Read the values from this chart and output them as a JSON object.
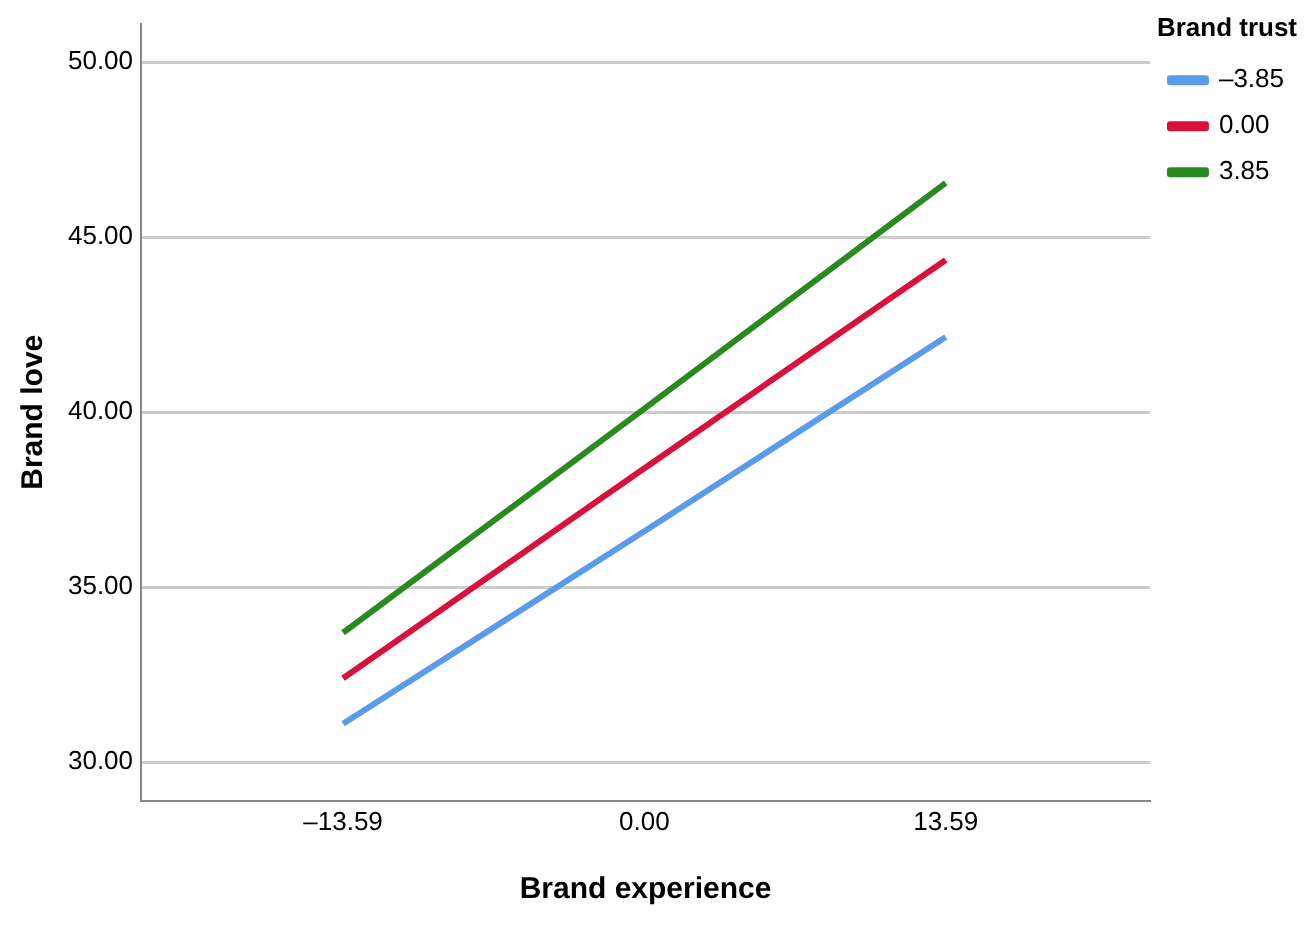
{
  "chart_data": {
    "type": "line",
    "xlabel": "Brand experience",
    "ylabel": "Brand love",
    "legend_title": "Brand trust",
    "x": [
      -13.59,
      0,
      13.59
    ],
    "series": [
      {
        "name": "–3.85",
        "color": "#5b9bec",
        "values": [
          31.1,
          36.6,
          42.15
        ]
      },
      {
        "name": "0.00",
        "color": "#d9103c",
        "values": [
          32.4,
          38.4,
          44.35
        ]
      },
      {
        "name": "3.85",
        "color": "#2a8a22",
        "values": [
          33.7,
          40.1,
          46.55
        ]
      }
    ],
    "xlim": [
      -22.7,
      22.8
    ],
    "xticks": [
      {
        "value": -13.59,
        "label": "–13.59"
      },
      {
        "value": 0,
        "label": "0.00"
      },
      {
        "value": 13.59,
        "label": "13.59"
      }
    ],
    "ylim": [
      28.9,
      51.1
    ],
    "yticks": [
      {
        "value": 30,
        "label": "30.00"
      },
      {
        "value": 35,
        "label": "35.00"
      },
      {
        "value": 40,
        "label": "40.00"
      },
      {
        "value": 45,
        "label": "45.00"
      },
      {
        "value": 50,
        "label": "50.00"
      }
    ],
    "grid": "y",
    "legend": "top right",
    "marker": "none",
    "line_style": "solid"
  }
}
